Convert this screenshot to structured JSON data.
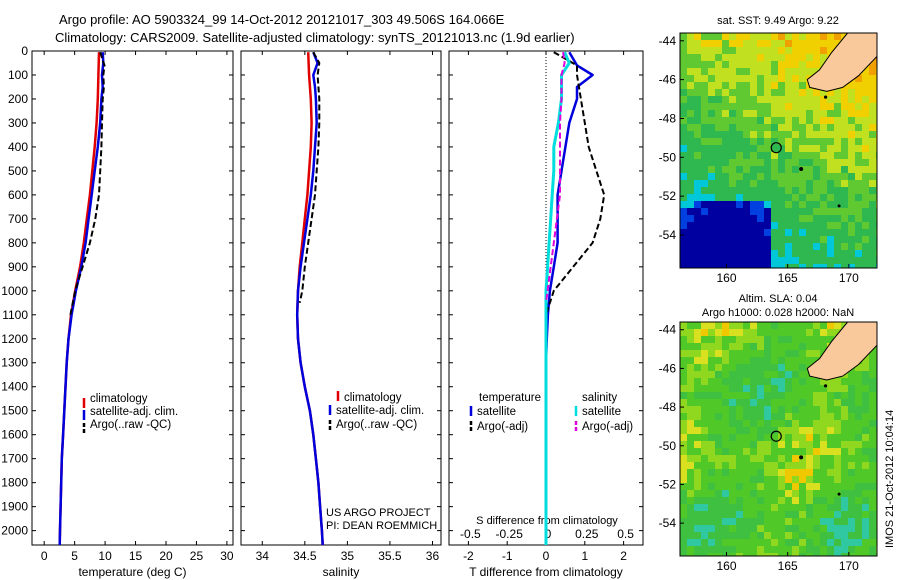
{
  "header": {
    "line1": "Argo profile: AO 5903324_99 14-Oct-2012 20121017_303 49.506S 164.066E",
    "line2": "Climatology: CARS2009. Satellite-adjusted climatology: synTS_20121013.nc (1.9d earlier)"
  },
  "colors": {
    "climatology": "#e00000",
    "satellite": "#0000dd",
    "argo": "#000000",
    "salinity_sat": "#00dddd",
    "salinity_argo": "#dd00dd"
  },
  "chart_data": [
    {
      "type": "line",
      "name": "temperature",
      "xlabel": "temperature (deg C)",
      "xlim": [
        -2,
        31
      ],
      "xticks": [
        0,
        5,
        10,
        15,
        20,
        25,
        30
      ],
      "ylim": [
        2060,
        0
      ],
      "yticks": [
        0,
        100,
        200,
        300,
        400,
        500,
        600,
        700,
        800,
        900,
        1000,
        1100,
        1200,
        1300,
        1400,
        1500,
        1600,
        1700,
        1800,
        1900,
        2000
      ],
      "legend": [
        "climatology",
        "satellite-adj. clim.",
        "Argo(..raw -QC)"
      ],
      "series": [
        {
          "name": "climatology",
          "points": [
            [
              9.0,
              5
            ],
            [
              8.9,
              100
            ],
            [
              8.8,
              200
            ],
            [
              8.6,
              300
            ],
            [
              8.3,
              400
            ],
            [
              7.9,
              500
            ],
            [
              7.5,
              600
            ],
            [
              7.0,
              700
            ],
            [
              6.5,
              800
            ],
            [
              5.9,
              900
            ],
            [
              5.1,
              1000
            ],
            [
              4.4,
              1100
            ],
            [
              4.0,
              1200
            ],
            [
              3.7,
              1300
            ],
            [
              3.5,
              1400
            ],
            [
              3.3,
              1500
            ],
            [
              3.1,
              1600
            ],
            [
              2.9,
              1700
            ],
            [
              2.8,
              1800
            ],
            [
              2.7,
              1900
            ],
            [
              2.6,
              2000
            ],
            [
              2.55,
              2060
            ]
          ]
        },
        {
          "name": "satellite-adj. clim.",
          "points": [
            [
              9.6,
              5
            ],
            [
              9.7,
              50
            ],
            [
              9.5,
              100
            ],
            [
              9.6,
              150
            ],
            [
              9.4,
              200
            ],
            [
              9.2,
              300
            ],
            [
              8.8,
              400
            ],
            [
              8.3,
              500
            ],
            [
              7.8,
              600
            ],
            [
              7.3,
              700
            ],
            [
              6.8,
              800
            ],
            [
              6.1,
              900
            ],
            [
              5.2,
              1000
            ],
            [
              4.5,
              1100
            ],
            [
              4.0,
              1200
            ],
            [
              3.7,
              1300
            ],
            [
              3.5,
              1400
            ],
            [
              3.3,
              1500
            ],
            [
              3.1,
              1600
            ],
            [
              2.9,
              1700
            ],
            [
              2.8,
              1800
            ],
            [
              2.7,
              1900
            ],
            [
              2.6,
              2000
            ],
            [
              2.55,
              2060
            ]
          ]
        },
        {
          "name": "Argo(..raw -QC)",
          "points": [
            [
              9.2,
              5
            ],
            [
              9.9,
              60
            ],
            [
              9.7,
              100
            ],
            [
              9.8,
              150
            ],
            [
              9.6,
              200
            ],
            [
              9.5,
              300
            ],
            [
              9.4,
              400
            ],
            [
              9.2,
              500
            ],
            [
              9.0,
              600
            ],
            [
              8.4,
              700
            ],
            [
              7.5,
              800
            ],
            [
              6.3,
              900
            ],
            [
              5.1,
              1000
            ],
            [
              4.3,
              1100
            ]
          ]
        }
      ]
    },
    {
      "type": "line",
      "name": "salinity",
      "xlabel": "salinity",
      "xlim": [
        33.75,
        36.1
      ],
      "xticks": [
        34,
        34.5,
        35,
        35.5,
        36
      ],
      "legend": [
        "climatology",
        "satellite-adj. clim.",
        "Argo(..raw -QC)"
      ],
      "series": [
        {
          "name": "climatology",
          "points": [
            [
              34.54,
              5
            ],
            [
              34.55,
              100
            ],
            [
              34.57,
              200
            ],
            [
              34.58,
              300
            ],
            [
              34.57,
              400
            ],
            [
              34.55,
              500
            ],
            [
              34.53,
              600
            ],
            [
              34.5,
              700
            ],
            [
              34.47,
              800
            ],
            [
              34.44,
              900
            ],
            [
              34.42,
              1000
            ],
            [
              34.41,
              1100
            ],
            [
              34.42,
              1200
            ],
            [
              34.45,
              1300
            ],
            [
              34.5,
              1400
            ],
            [
              34.56,
              1500
            ],
            [
              34.6,
              1600
            ],
            [
              34.63,
              1700
            ],
            [
              34.66,
              1800
            ],
            [
              34.68,
              1900
            ],
            [
              34.7,
              2000
            ],
            [
              34.71,
              2060
            ]
          ]
        },
        {
          "name": "satellite-adj. clim.",
          "points": [
            [
              34.6,
              5
            ],
            [
              34.65,
              50
            ],
            [
              34.6,
              100
            ],
            [
              34.62,
              150
            ],
            [
              34.63,
              200
            ],
            [
              34.64,
              300
            ],
            [
              34.62,
              400
            ],
            [
              34.6,
              500
            ],
            [
              34.57,
              600
            ],
            [
              34.53,
              700
            ],
            [
              34.49,
              800
            ],
            [
              34.45,
              900
            ],
            [
              34.42,
              1000
            ],
            [
              34.41,
              1100
            ],
            [
              34.42,
              1200
            ],
            [
              34.45,
              1300
            ],
            [
              34.5,
              1400
            ],
            [
              34.56,
              1500
            ],
            [
              34.6,
              1600
            ],
            [
              34.63,
              1700
            ],
            [
              34.66,
              1800
            ],
            [
              34.68,
              1900
            ],
            [
              34.7,
              2000
            ],
            [
              34.71,
              2060
            ]
          ]
        },
        {
          "name": "Argo(..raw -QC)",
          "points": [
            [
              34.6,
              5
            ],
            [
              34.67,
              50
            ],
            [
              34.65,
              100
            ],
            [
              34.67,
              200
            ],
            [
              34.67,
              300
            ],
            [
              34.66,
              400
            ],
            [
              34.64,
              500
            ],
            [
              34.62,
              600
            ],
            [
              34.58,
              700
            ],
            [
              34.54,
              800
            ],
            [
              34.5,
              900
            ],
            [
              34.47,
              1000
            ],
            [
              34.44,
              1050
            ]
          ]
        }
      ],
      "annotation": [
        "US ARGO PROJECT",
        "PI: DEAN ROEMMICH"
      ]
    },
    {
      "type": "line",
      "name": "difference",
      "xlabel": "T difference from climatology",
      "xlabel2": "S difference from climatology",
      "xlim": [
        -2.5,
        2.5
      ],
      "xticks": [
        -2,
        -1,
        0,
        1,
        2
      ],
      "xticks2": [
        -0.5,
        -0.25,
        0,
        0.25,
        0.5
      ],
      "legend_titles": [
        "temperature",
        "salinity"
      ],
      "legend": [
        "satellite",
        "Argo(-adj)",
        "satellite",
        "Argo(-adj)"
      ],
      "series": [
        {
          "name": "temperature satellite",
          "points": [
            [
              0.6,
              5
            ],
            [
              0.8,
              60
            ],
            [
              1.2,
              100
            ],
            [
              0.8,
              150
            ],
            [
              0.8,
              200
            ],
            [
              0.6,
              300
            ],
            [
              0.5,
              400
            ],
            [
              0.4,
              500
            ],
            [
              0.3,
              600
            ],
            [
              0.3,
              700
            ],
            [
              0.3,
              800
            ],
            [
              0.2,
              900
            ],
            [
              0.1,
              1000
            ],
            [
              0.05,
              1100
            ],
            [
              0.02,
              1200
            ],
            [
              0,
              1300
            ],
            [
              0,
              2060
            ]
          ]
        },
        {
          "name": "temperature Argo(-adj)",
          "points": [
            [
              0.2,
              5
            ],
            [
              0.8,
              60
            ],
            [
              0.8,
              100
            ],
            [
              0.9,
              200
            ],
            [
              1.0,
              300
            ],
            [
              1.1,
              400
            ],
            [
              1.3,
              500
            ],
            [
              1.5,
              600
            ],
            [
              1.4,
              700
            ],
            [
              1.2,
              800
            ],
            [
              0.7,
              900
            ],
            [
              0.2,
              1000
            ],
            [
              0,
              1100
            ]
          ]
        },
        {
          "name": "salinity satellite",
          "points": [
            [
              0.12,
              5
            ],
            [
              0.15,
              50
            ],
            [
              0.1,
              100
            ],
            [
              0.1,
              150
            ],
            [
              0.1,
              200
            ],
            [
              0.08,
              300
            ],
            [
              0.05,
              400
            ],
            [
              0.05,
              500
            ],
            [
              0.04,
              600
            ],
            [
              0.03,
              700
            ],
            [
              0.02,
              800
            ],
            [
              0.01,
              900
            ],
            [
              0,
              1000
            ],
            [
              0,
              2060
            ]
          ]
        },
        {
          "name": "salinity Argo(-adj)",
          "points": [
            [
              0.11,
              5
            ],
            [
              0.12,
              50
            ],
            [
              0.1,
              100
            ],
            [
              0.1,
              200
            ],
            [
              0.09,
              300
            ],
            [
              0.09,
              400
            ],
            [
              0.09,
              500
            ],
            [
              0.09,
              600
            ],
            [
              0.07,
              700
            ],
            [
              0.05,
              800
            ],
            [
              0.03,
              900
            ],
            [
              0.01,
              1000
            ],
            [
              0,
              1050
            ]
          ]
        }
      ]
    },
    {
      "type": "heatmap",
      "name": "sst-map",
      "title": "sat. SST: 9.49 Argo: 9.22",
      "xticks": [
        160,
        165,
        170
      ],
      "yticks": [
        -44,
        -46,
        -48,
        -50,
        -52,
        -54
      ],
      "xlim": [
        156.2,
        172.3
      ],
      "ylim": [
        -55.7,
        -43.6
      ],
      "marker": [
        164.066,
        -49.506
      ]
    },
    {
      "type": "heatmap",
      "name": "sla-map",
      "title": "Altim. SLA: 0.04",
      "subtitle": "Argo h1000: 0.028 h2000: NaN",
      "xticks": [
        160,
        165,
        170
      ],
      "yticks": [
        -44,
        -46,
        -48,
        -50,
        -52,
        -54
      ],
      "xlim": [
        156.2,
        172.3
      ],
      "ylim": [
        -55.7,
        -43.6
      ],
      "marker": [
        164.066,
        -49.506
      ],
      "side_label": "IMOS 21-Oct-2012 10:04:14"
    }
  ]
}
